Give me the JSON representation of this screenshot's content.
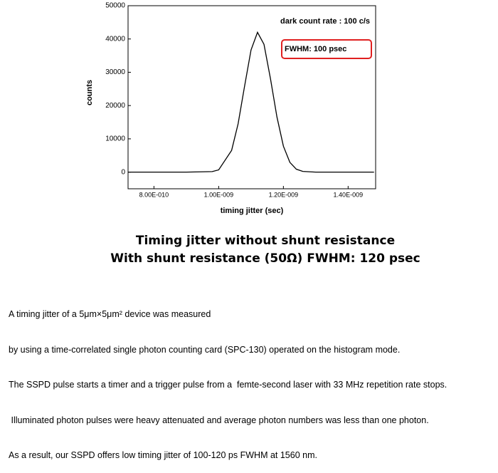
{
  "chart_data": {
    "type": "line",
    "x_label": "timing jitter (sec)",
    "y_label": "counts",
    "annotations": [
      "dark count rate : 100 c/s",
      "FWHM: 100 psec"
    ],
    "x": [
      7.2e-10,
      9e-10,
      9.8e-10,
      1e-09,
      1.04e-09,
      1.06e-09,
      1.08e-09,
      1.1e-09,
      1.12e-09,
      1.14e-09,
      1.16e-09,
      1.18e-09,
      1.2e-09,
      1.22e-09,
      1.24e-09,
      1.26e-09,
      1.3e-09,
      1.48e-09
    ],
    "series": [
      {
        "name": "counts",
        "color": "#000000",
        "values": [
          0,
          0,
          160,
          680,
          6540,
          14500,
          25800,
          36700,
          42000,
          38400,
          28100,
          16600,
          7800,
          2940,
          880,
          215,
          0,
          0
        ]
      }
    ],
    "xlim": [
      7.2e-10,
      1.485e-09
    ],
    "xticks": [
      {
        "value": 8e-10,
        "label": "8.00E-010"
      },
      {
        "value": 1e-09,
        "label": "1.00E-009"
      },
      {
        "value": 1.2e-09,
        "label": "1.20E-009"
      },
      {
        "value": 1.4e-09,
        "label": "1.40E-009"
      }
    ],
    "ylim": [
      -5000,
      50000
    ],
    "yticks": [
      0,
      10000,
      20000,
      30000,
      40000,
      50000
    ],
    "grid": false
  },
  "caption": [
    "Timing jitter without shunt resistance",
    "With shunt resistance (50Ω)  FWHM: 120 psec"
  ],
  "description": [
    "A timing jitter of a 5μm×5μm² device was measured",
    "by using a time-correlated single photon counting card (SPC-130) operated on the histogram mode.",
    "The SSPD pulse starts a timer and a trigger pulse from a  femte-second laser with 33 MHz repetition rate stops.",
    " Illuminated photon pulses were heavy attenuated and average photon numbers was less than one photon.",
    "As a result, our SSPD offers low timing jitter of 100-120 ps FWHM at 1560 nm."
  ]
}
